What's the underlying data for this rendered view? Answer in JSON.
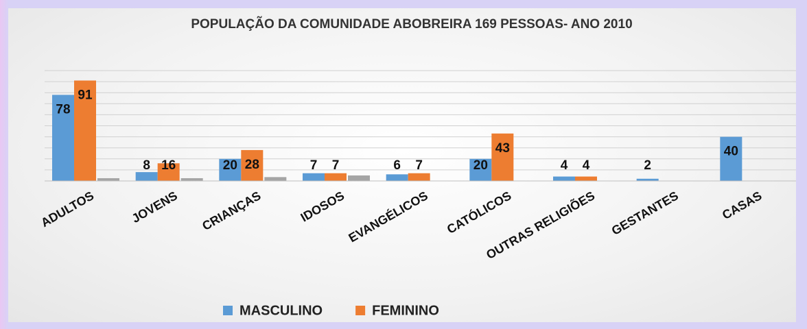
{
  "chart_data": {
    "type": "bar",
    "title": "POPULAÇÃO DA COMUNIDADE ABOBREIRA 169 PESSOAS- ANO 2010",
    "categories": [
      "ADULTOS",
      "JOVENS",
      "CRIANÇAS",
      "IDOSOS",
      "EVANGÉLICOS",
      "CATÓLICOS",
      "OUTRAS RELIGIÕES",
      "GESTANTES",
      "CASAS"
    ],
    "series": [
      {
        "name": "MASCULINO",
        "color": "#5b9bd5",
        "values": [
          78,
          8,
          20,
          7,
          6,
          20,
          4,
          2,
          40
        ]
      },
      {
        "name": "FEMININO",
        "color": "#ed7d31",
        "values": [
          91,
          16,
          28,
          7,
          7,
          43,
          4,
          null,
          null
        ]
      },
      {
        "color": "#a5a5a5",
        "values": [
          2.5,
          2.5,
          3.5,
          5,
          null,
          null,
          null,
          null,
          null
        ]
      }
    ],
    "ylim": [
      0,
      100
    ],
    "yticks": [
      0,
      10,
      20,
      30,
      40,
      50,
      60,
      70,
      80,
      90,
      100
    ],
    "grid": true,
    "legend": "bottom"
  }
}
